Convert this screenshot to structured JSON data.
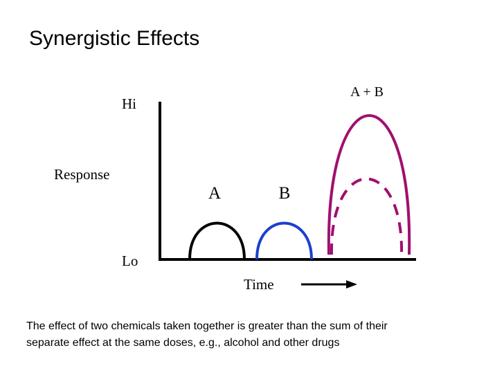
{
  "title": "Synergistic Effects",
  "diagram": {
    "y_axis_label": "Response",
    "y_high": "Hi",
    "y_low": "Lo",
    "x_axis_label": "Time",
    "curves": [
      {
        "label": "A"
      },
      {
        "label": "B"
      },
      {
        "label": "A + B"
      }
    ]
  },
  "caption": {
    "lines": [
      "The effect of two chemicals taken together is greater than the sum of their",
      "separate effect at the same doses, e.g., alcohol and other drugs"
    ]
  }
}
